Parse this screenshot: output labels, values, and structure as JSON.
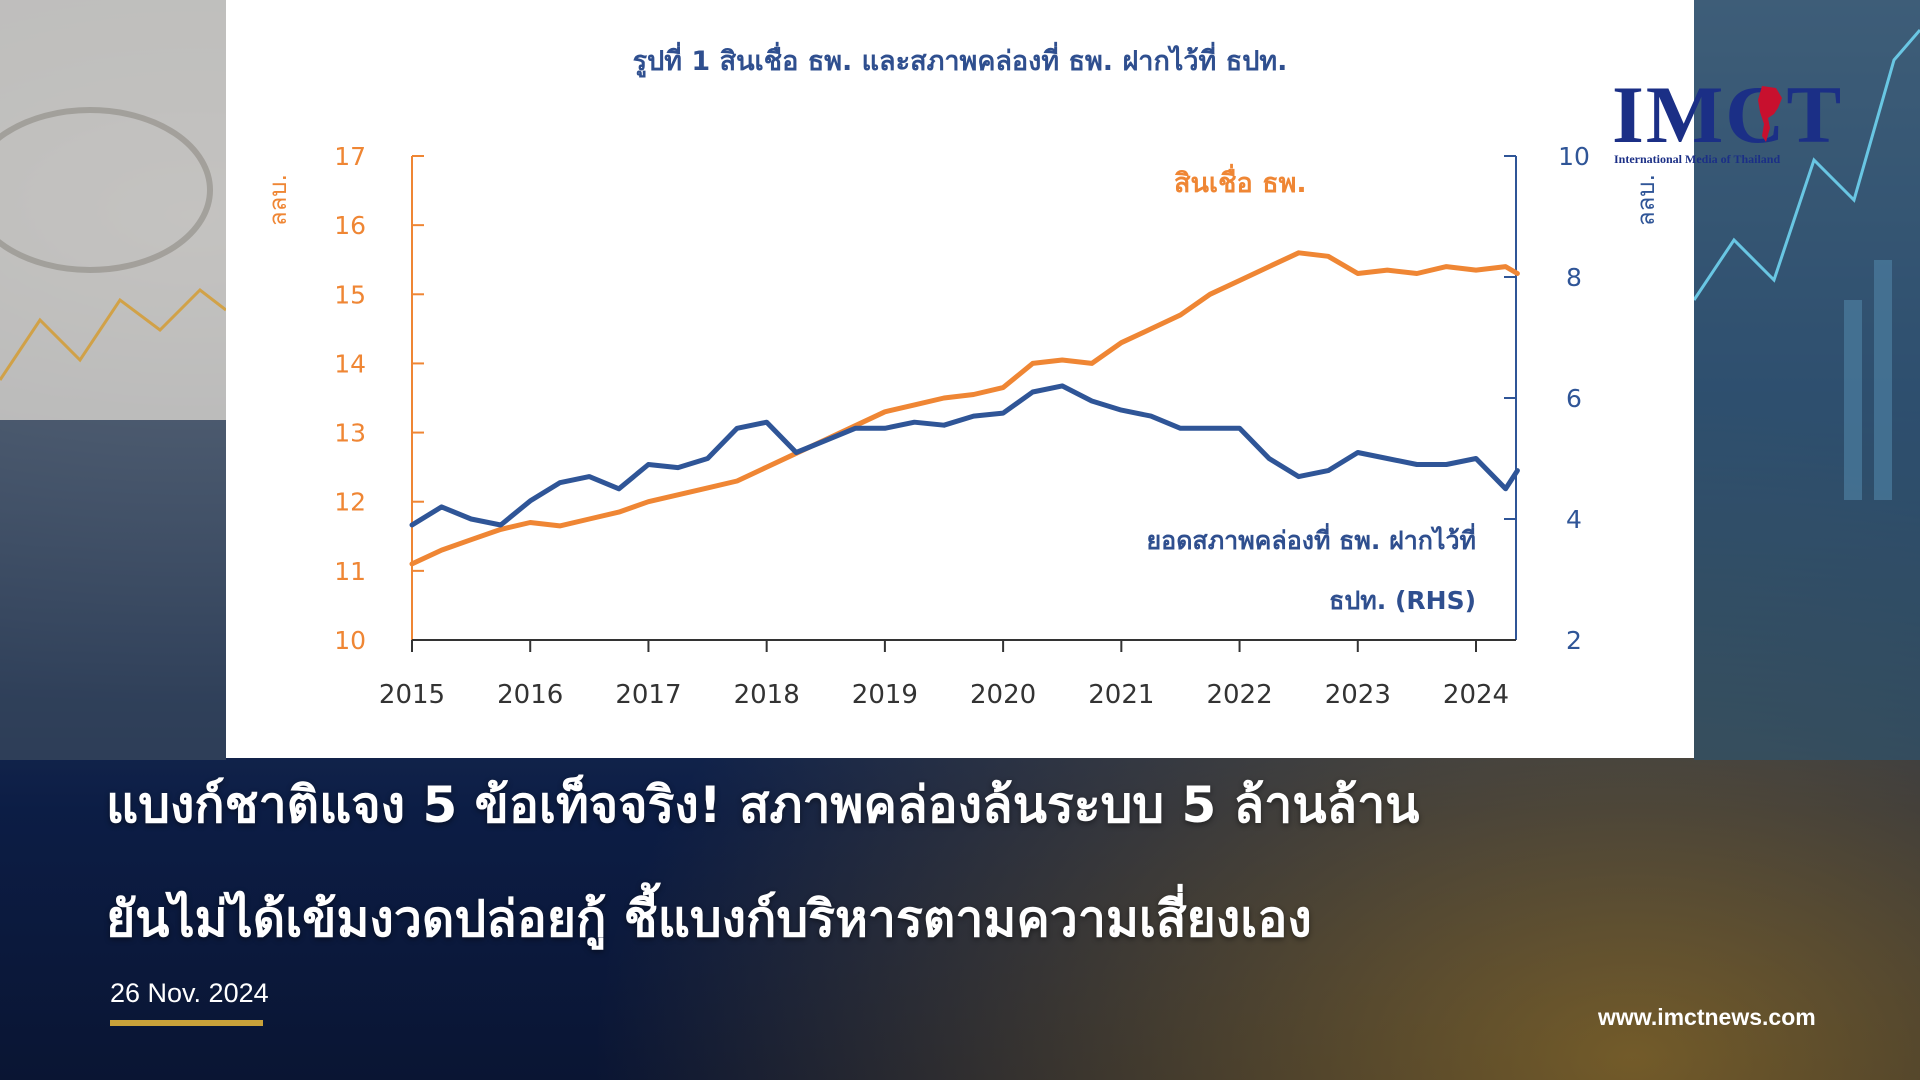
{
  "colors": {
    "loans": "#ef8634",
    "liquidity": "#2f5597",
    "axis_left": "#ef8634",
    "axis_right": "#2f5597",
    "chart_title": "#2f4f8f",
    "logo": "#1b2f86",
    "date_underline": "#c9a23a"
  },
  "logo": {
    "text": "IMCT",
    "subtitle": "International Media of Thailand"
  },
  "headline": {
    "line1": "แบงก์ชาติแจง 5 ข้อเท็จจริง! สภาพคล่องล้นระบบ 5 ล้านล้าน",
    "line2": "ยันไม่ได้เข้มงวดปล่อยกู้ ชี้แบงก์บริหารตามความเสี่ยงเอง"
  },
  "date": "26 Nov. 2024",
  "website": "www.imctnews.com",
  "chart_data": {
    "type": "line",
    "title": "รูปที่ 1 สินเชื่อ ธพ. และสภาพคล่องที่ ธพ. ฝากไว้ที่ ธปท.",
    "ylabel_left": "ลลบ.",
    "ylabel_right": "ลลบ.",
    "ylim_left": [
      10,
      17
    ],
    "ylim_right": [
      2,
      10
    ],
    "yticks_left": [
      "10",
      "11",
      "12",
      "13",
      "14",
      "15",
      "16",
      "17"
    ],
    "yticks_right": [
      "2",
      "4",
      "6",
      "8",
      "10"
    ],
    "xticks": [
      "2015",
      "2016",
      "2017",
      "2018",
      "2019",
      "2020",
      "2021",
      "2022",
      "2023",
      "2024"
    ],
    "grid": false,
    "series": [
      {
        "name": "สินเชื่อ ธพ.",
        "axis": "left",
        "color_key": "loans",
        "x": [
          2015.0,
          2015.25,
          2015.5,
          2015.75,
          2016.0,
          2016.25,
          2016.5,
          2016.75,
          2017.0,
          2017.25,
          2017.5,
          2017.75,
          2018.0,
          2018.25,
          2018.5,
          2018.75,
          2019.0,
          2019.25,
          2019.5,
          2019.75,
          2020.0,
          2020.25,
          2020.5,
          2020.75,
          2021.0,
          2021.25,
          2021.5,
          2021.75,
          2022.0,
          2022.25,
          2022.5,
          2022.75,
          2023.0,
          2023.25,
          2023.5,
          2023.75,
          2024.0,
          2024.25,
          2024.35
        ],
        "values": [
          11.1,
          11.3,
          11.45,
          11.6,
          11.7,
          11.65,
          11.75,
          11.85,
          12.0,
          12.1,
          12.2,
          12.3,
          12.5,
          12.7,
          12.9,
          13.1,
          13.3,
          13.4,
          13.5,
          13.55,
          13.65,
          14.0,
          14.05,
          14.0,
          14.3,
          14.5,
          14.7,
          15.0,
          15.2,
          15.4,
          15.6,
          15.55,
          15.3,
          15.35,
          15.3,
          15.4,
          15.35,
          15.4,
          15.3
        ]
      },
      {
        "name": "ยอดสภาพคล่องที่ ธพ. ฝากไว้ที่ ธปท. (RHS)",
        "axis": "right",
        "color_key": "liquidity",
        "x": [
          2015.0,
          2015.25,
          2015.5,
          2015.75,
          2016.0,
          2016.25,
          2016.5,
          2016.75,
          2017.0,
          2017.25,
          2017.5,
          2017.75,
          2018.0,
          2018.25,
          2018.5,
          2018.75,
          2019.0,
          2019.25,
          2019.5,
          2019.75,
          2020.0,
          2020.25,
          2020.5,
          2020.75,
          2021.0,
          2021.25,
          2021.5,
          2021.75,
          2022.0,
          2022.25,
          2022.5,
          2022.75,
          2023.0,
          2023.25,
          2023.5,
          2023.75,
          2024.0,
          2024.25,
          2024.35
        ],
        "values": [
          3.9,
          4.2,
          4.0,
          3.9,
          4.3,
          4.6,
          4.7,
          4.5,
          4.9,
          4.85,
          5.0,
          5.5,
          5.6,
          5.1,
          5.3,
          5.5,
          5.5,
          5.6,
          5.55,
          5.7,
          5.75,
          6.1,
          6.2,
          5.95,
          5.8,
          5.7,
          5.5,
          5.5,
          5.5,
          5.0,
          4.7,
          4.8,
          5.1,
          5.0,
          4.9,
          4.9,
          5.0,
          4.5,
          4.8
        ]
      }
    ],
    "annotations": [
      {
        "text": "สินเชื่อ ธพ.",
        "series": 0
      },
      {
        "text": "ยอดสภาพคล่องที่ ธพ. ฝากไว้ที่",
        "series": 1
      },
      {
        "text": "ธปท. (RHS)",
        "series": 1
      }
    ]
  }
}
